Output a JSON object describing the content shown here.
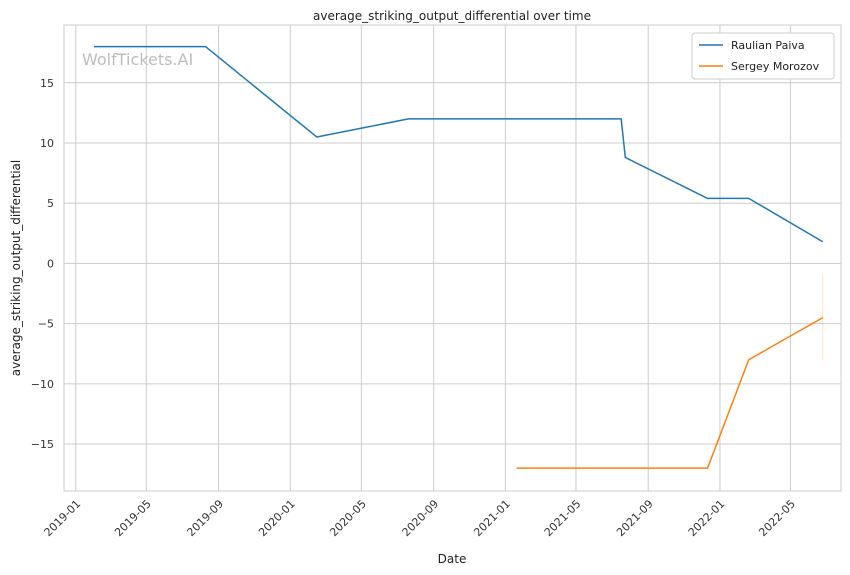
{
  "chart_data": {
    "type": "line",
    "title": "average_striking_output_differential over time",
    "xlabel": "Date",
    "ylabel": "average_striking_output_differential",
    "watermark": "WolfTickets.AI",
    "x_ticks": [
      "2019-01",
      "2019-05",
      "2019-09",
      "2020-01",
      "2020-05",
      "2020-09",
      "2021-01",
      "2021-05",
      "2021-09",
      "2022-01",
      "2022-05"
    ],
    "y_ticks": [
      -15,
      -10,
      -5,
      0,
      5,
      10,
      15
    ],
    "xlim": [
      "2018-12-12",
      "2022-07-26"
    ],
    "ylim": [
      -18.9,
      19.8
    ],
    "grid": true,
    "legend_position": "top-right",
    "series": [
      {
        "name": "Raulian Paiva",
        "color": "#1f77b4",
        "points": [
          {
            "x": "2019-02-01",
            "y": 18.0
          },
          {
            "x": "2019-08-10",
            "y": 18.0
          },
          {
            "x": "2020-02-15",
            "y": 10.5
          },
          {
            "x": "2020-07-20",
            "y": 12.0
          },
          {
            "x": "2021-07-17",
            "y": 12.0
          },
          {
            "x": "2021-07-24",
            "y": 8.8
          },
          {
            "x": "2021-12-11",
            "y": 5.4
          },
          {
            "x": "2022-02-19",
            "y": 5.4
          },
          {
            "x": "2022-06-25",
            "y": 1.8
          }
        ]
      },
      {
        "name": "Sergey Morozov",
        "color": "#ff7f0e",
        "points": [
          {
            "x": "2021-01-20",
            "y": -17.0
          },
          {
            "x": "2021-12-11",
            "y": -17.0
          },
          {
            "x": "2022-02-19",
            "y": -8.0
          },
          {
            "x": "2022-06-25",
            "y": -4.5
          }
        ],
        "error_band": {
          "x": "2022-06-25",
          "low": -8.0,
          "high": -1.0
        }
      }
    ]
  }
}
